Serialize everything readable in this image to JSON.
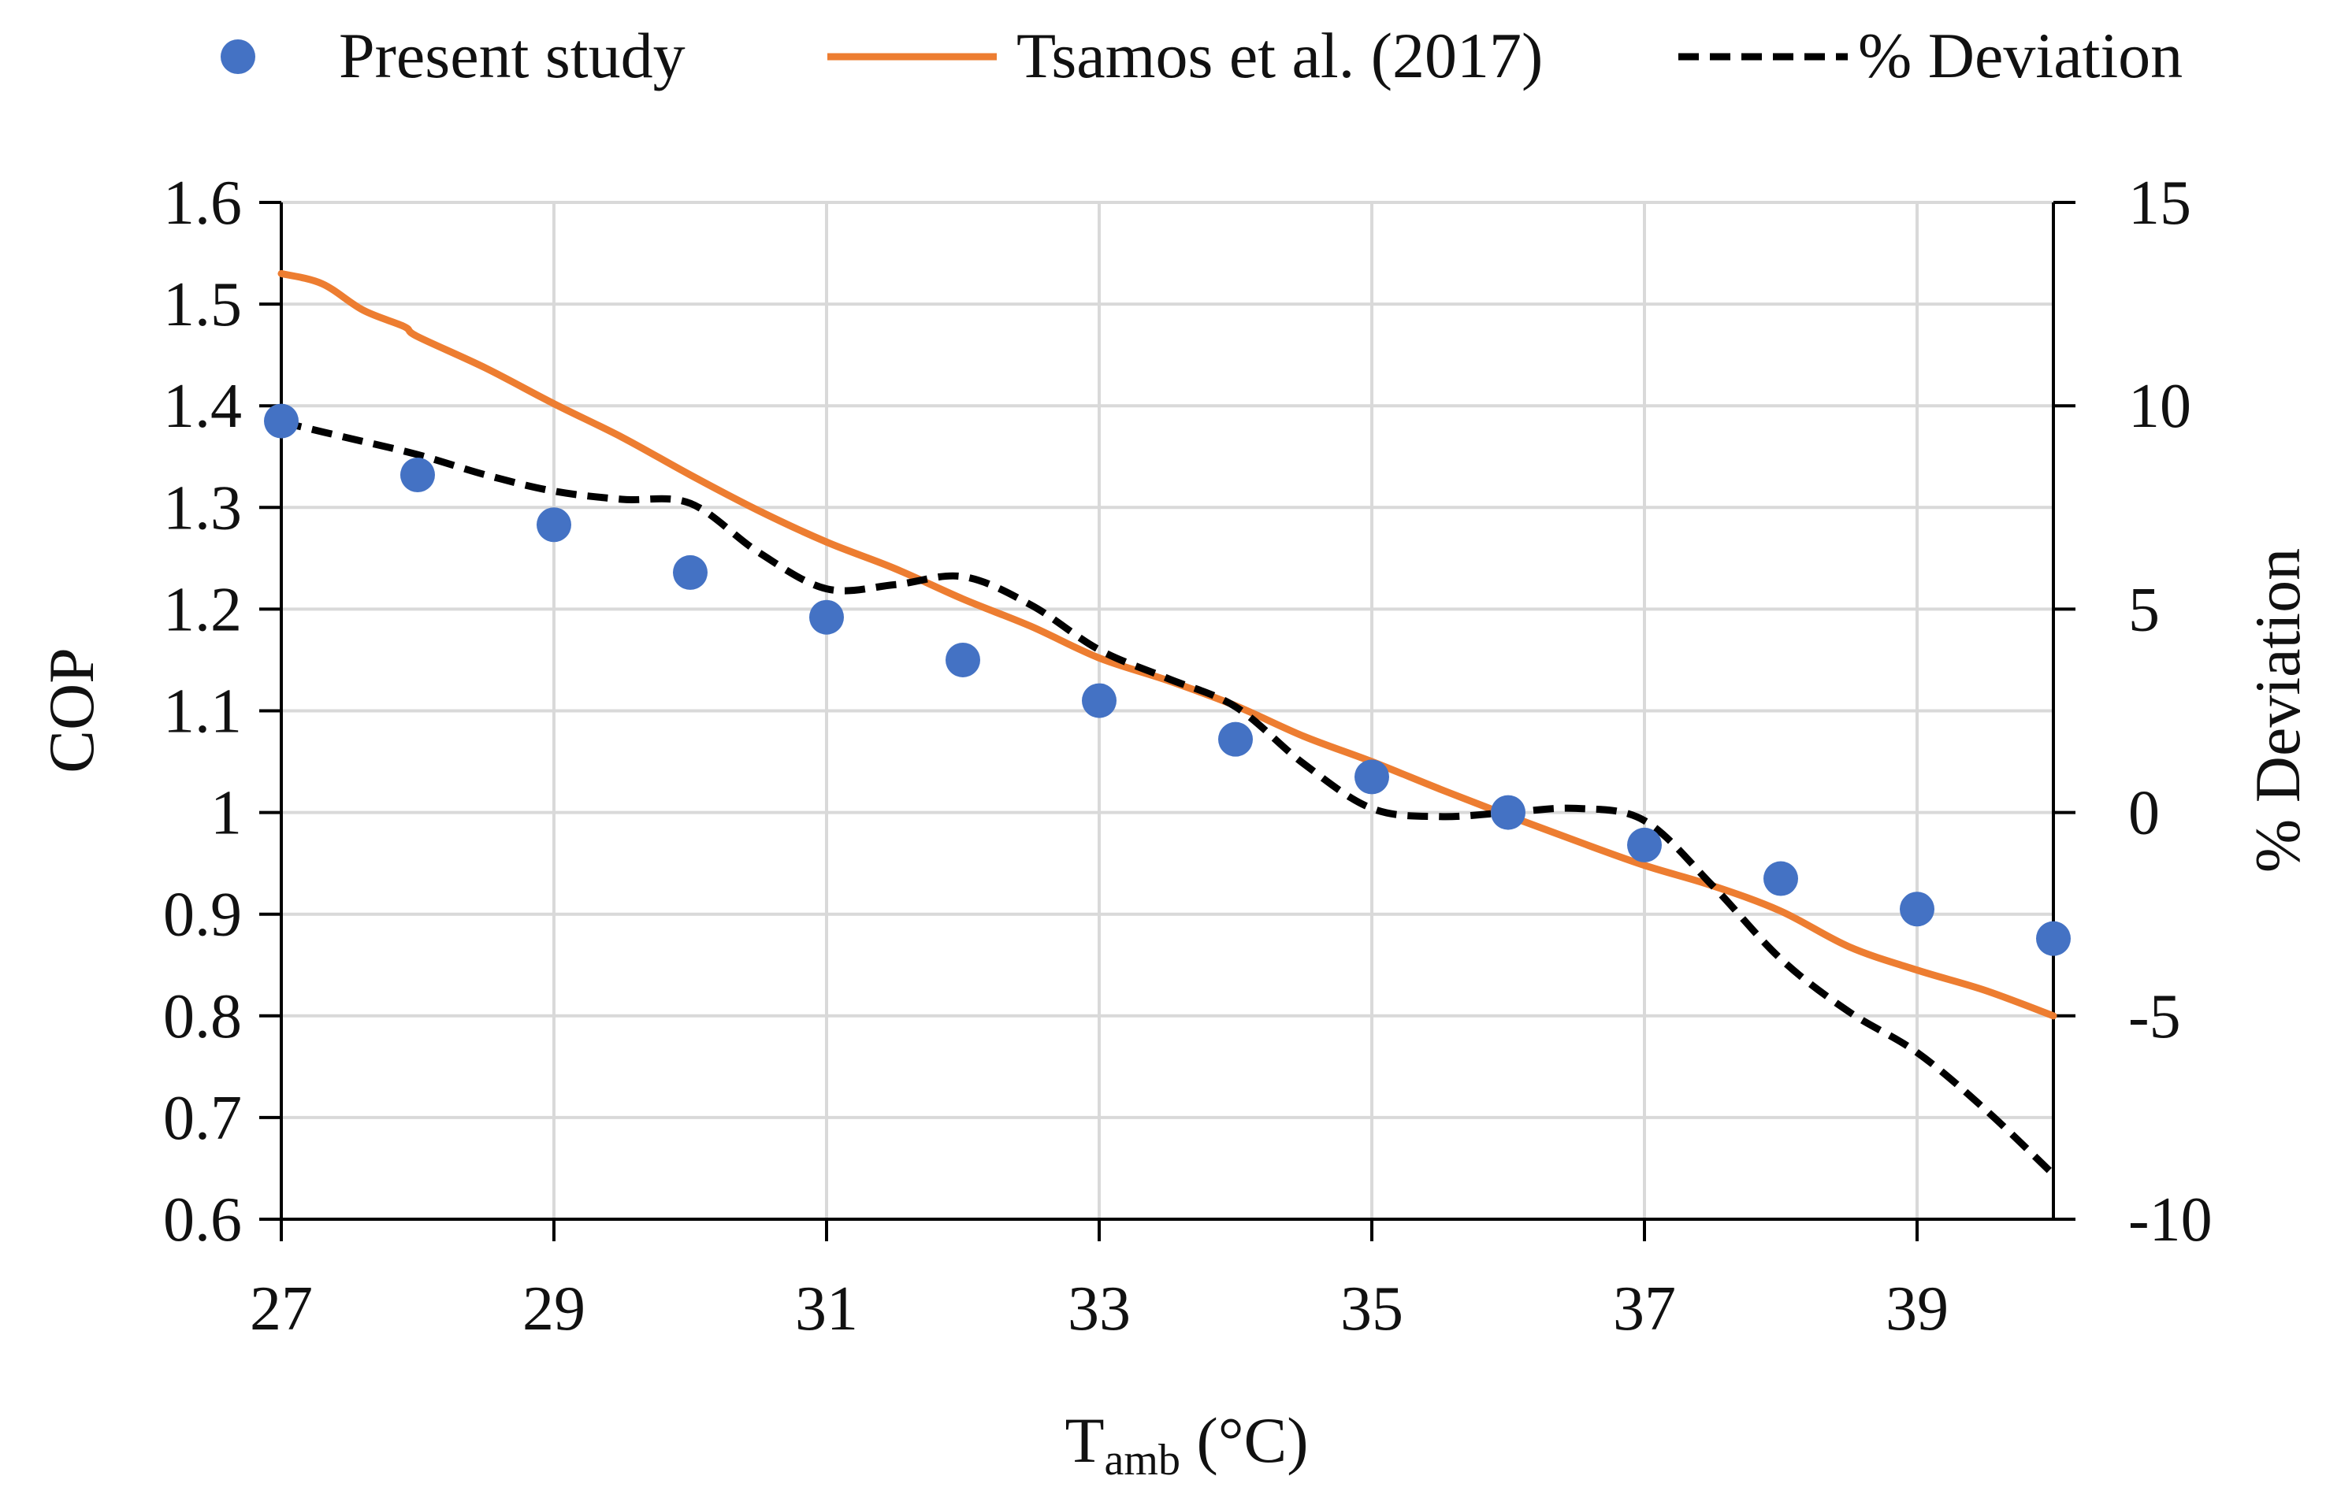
{
  "chart_data": {
    "type": "line",
    "x_axis": {
      "label": "T",
      "label_subscript": "amb",
      "label_suffix": " (°C)",
      "range": [
        27,
        40
      ],
      "ticks": [
        27,
        29,
        31,
        33,
        35,
        37,
        39
      ],
      "tick_labels": [
        "27",
        "29",
        "31",
        "33",
        "35",
        "37",
        "39"
      ],
      "grid": true
    },
    "y_axis_left": {
      "label": "COP",
      "range": [
        0.6,
        1.6
      ],
      "ticks": [
        0.6,
        0.7,
        0.8,
        0.9,
        1.0,
        1.1,
        1.2,
        1.3,
        1.4,
        1.5,
        1.6
      ],
      "tick_labels": [
        "0.6",
        "0.7",
        "0.8",
        "0.9",
        "1",
        "1.1",
        "1.2",
        "1.3",
        "1.4",
        "1.5",
        "1.6"
      ],
      "grid": true
    },
    "y_axis_right": {
      "label": "% Deviation",
      "range": [
        -10,
        15
      ],
      "ticks": [
        -10,
        -5,
        0,
        5,
        10,
        15
      ],
      "tick_labels": [
        "-10",
        "-5",
        "0",
        "5",
        "10",
        "15"
      ]
    },
    "legend_position": "top",
    "series": [
      {
        "name": "Present study",
        "style": "scatter",
        "axis": "left",
        "color": "#4472C4",
        "x": [
          27,
          28,
          29,
          30,
          31,
          32,
          33,
          34,
          35,
          36,
          37,
          38,
          39,
          40
        ],
        "y": [
          1.385,
          1.332,
          1.283,
          1.236,
          1.192,
          1.15,
          1.11,
          1.072,
          1.035,
          1.0,
          0.968,
          0.935,
          0.905,
          0.876
        ]
      },
      {
        "name": "Tsamos et al. (2017)",
        "style": "line",
        "axis": "left",
        "color": "#ED7D31",
        "x": [
          27,
          27.3,
          27.6,
          27.9,
          28,
          28.5,
          29,
          29.5,
          30,
          30.5,
          31,
          31.5,
          32,
          32.5,
          33,
          33.5,
          34,
          34.5,
          35,
          35.5,
          36,
          36.5,
          37,
          37.5,
          38,
          38.5,
          39,
          39.5,
          40
        ],
        "y": [
          1.53,
          1.52,
          1.494,
          1.478,
          1.468,
          1.437,
          1.402,
          1.369,
          1.332,
          1.297,
          1.266,
          1.24,
          1.21,
          1.183,
          1.152,
          1.13,
          1.105,
          1.075,
          1.05,
          1.023,
          0.997,
          0.972,
          0.948,
          0.928,
          0.903,
          0.868,
          0.845,
          0.825,
          0.8
        ]
      },
      {
        "name": "% Deviation",
        "style": "dashed-line",
        "axis": "right",
        "color": "#000000",
        "x": [
          27,
          27.5,
          28,
          28.5,
          29,
          29.5,
          30,
          30.5,
          31,
          31.5,
          32,
          32.5,
          33,
          33.5,
          34,
          34.5,
          35,
          35.5,
          36,
          36.5,
          37,
          37.5,
          38,
          38.5,
          39,
          39.5,
          40
        ],
        "y": [
          9.6,
          9.2,
          8.8,
          8.3,
          7.9,
          7.7,
          7.6,
          6.4,
          5.5,
          5.6,
          5.8,
          5.1,
          4.0,
          3.3,
          2.6,
          1.2,
          0.1,
          -0.1,
          0.0,
          0.1,
          -0.2,
          -1.8,
          -3.6,
          -4.9,
          -5.9,
          -7.3,
          -8.9
        ]
      }
    ]
  }
}
